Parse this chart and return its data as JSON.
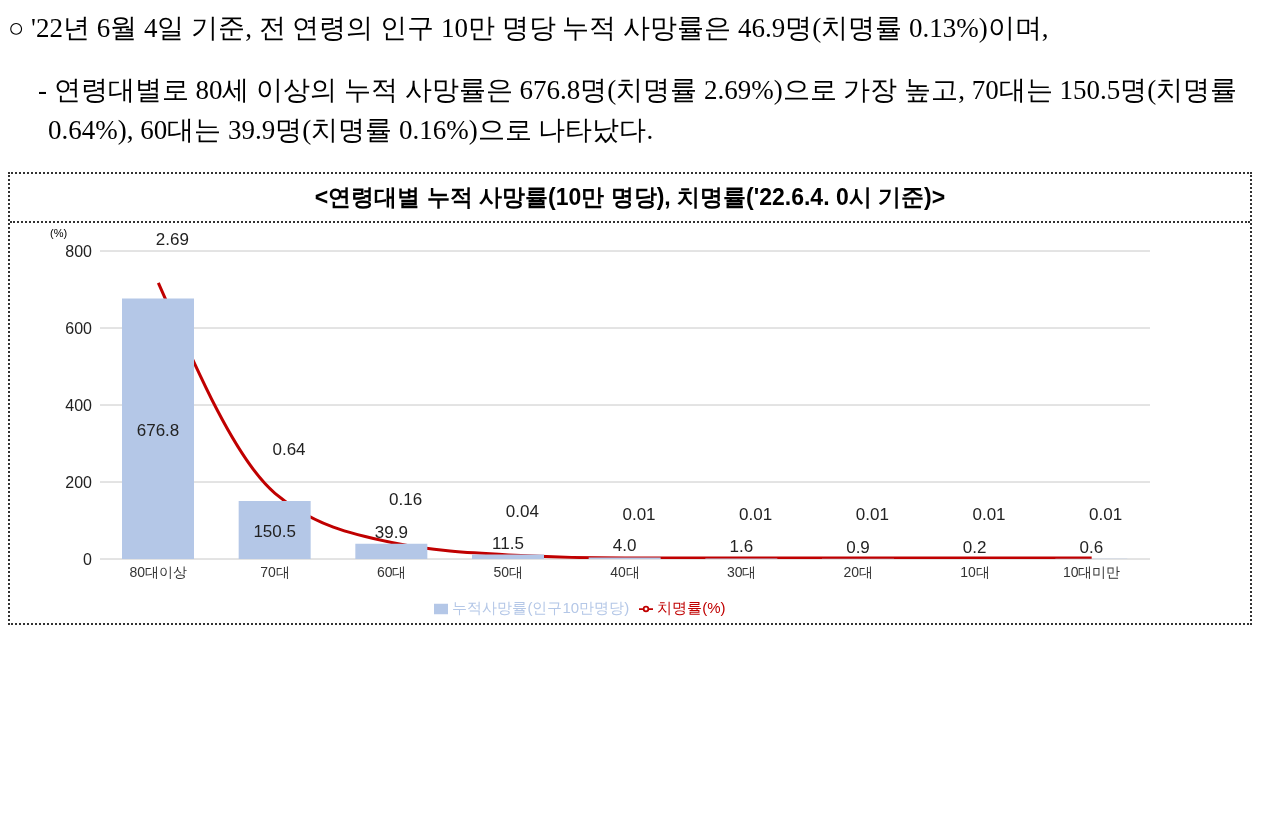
{
  "chart_data": {
    "type": "bar",
    "title": "<연령대별 누적 사망률(10만 명당), 치명률('22.6.4. 0시 기준)>",
    "annotations": [
      "○ '22년 6월 4일 기준, 전 연령의 인구 10만 명당 누적 사망률은 46.9명(치명률 0.13%)이며,",
      "- 연령대별로 80세 이상의 누적 사망률은 676.8명(치명률 2.69%)으로 가장 높고, 70대는 150.5명(치명률 0.64%), 60대는 39.9명(치명률 0.16%)으로 나타났다."
    ],
    "ylabel": "(%)",
    "categories": [
      "80대이상",
      "70대",
      "60대",
      "50대",
      "40대",
      "30대",
      "20대",
      "10대",
      "10대미만"
    ],
    "series": [
      {
        "name": "누적사망률(인구10만명당)",
        "color": "#b4c7e7",
        "values": [
          676.8,
          150.5,
          39.9,
          11.5,
          4.0,
          1.6,
          0.9,
          0.2,
          0.6
        ],
        "value_labels": [
          "676.8",
          "150.5",
          "39.9",
          "11.5",
          "4.0",
          "1.6",
          "0.9",
          "0.2",
          "0.6"
        ]
      },
      {
        "name": "치명률(%)",
        "type": "line",
        "axis": "y2",
        "color": "#c00000",
        "values": [
          2.69,
          0.64,
          0.16,
          0.04,
          0.01,
          0.01,
          0.01,
          0.01,
          0.01
        ],
        "value_labels": [
          "2.69",
          "0.64",
          "0.16",
          "0.04",
          "0.01",
          "0.01",
          "0.01",
          "0.01",
          "0.01"
        ]
      }
    ],
    "ylim": [
      0,
      800
    ],
    "yticks": [
      0,
      200,
      400,
      600,
      800
    ],
    "y2lim": [
      0,
      3
    ],
    "grid": "y",
    "legend": "bottom",
    "marker": "none"
  }
}
